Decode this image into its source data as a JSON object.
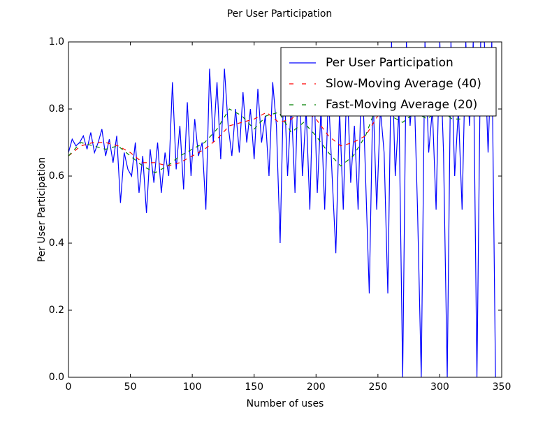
{
  "chart_data": {
    "type": "line",
    "title": "Per User Participation",
    "xlabel": "Number of uses",
    "ylabel": "Per User Participation",
    "xlim": [
      0,
      350
    ],
    "ylim": [
      0,
      1
    ],
    "xticks": [
      0,
      50,
      100,
      150,
      200,
      250,
      300,
      350
    ],
    "yticks": [
      {
        "value": 0,
        "label": "0.0"
      },
      0.2,
      0.4,
      0.6,
      0.8,
      {
        "value": 1,
        "label": "1.0"
      }
    ],
    "grid": false,
    "legend": "upper right",
    "series": [
      {
        "name": "Per User Participation",
        "color": "#0000ff",
        "style": "solid",
        "x": [
          0,
          3,
          6,
          9,
          12,
          15,
          18,
          21,
          24,
          27,
          30,
          33,
          36,
          39,
          42,
          45,
          48,
          51,
          54,
          57,
          60,
          63,
          66,
          69,
          72,
          75,
          78,
          81,
          84,
          87,
          90,
          93,
          96,
          99,
          102,
          105,
          108,
          111,
          114,
          117,
          120,
          123,
          126,
          129,
          132,
          135,
          138,
          141,
          144,
          147,
          150,
          153,
          156,
          159,
          162,
          165,
          168,
          171,
          174,
          177,
          180,
          183,
          186,
          189,
          192,
          195,
          198,
          201,
          204,
          207,
          210,
          213,
          216,
          219,
          222,
          225,
          228,
          231,
          234,
          237,
          240,
          243,
          246,
          249,
          252,
          255,
          258,
          261,
          264,
          267,
          270,
          273,
          276,
          279,
          282,
          285,
          288,
          291,
          294,
          297,
          300,
          303,
          306,
          309,
          312,
          315,
          318,
          321,
          324,
          327,
          330,
          333,
          336,
          339,
          342,
          345
        ],
        "values": [
          0.67,
          0.71,
          0.69,
          0.7,
          0.72,
          0.68,
          0.73,
          0.67,
          0.7,
          0.74,
          0.66,
          0.71,
          0.64,
          0.72,
          0.52,
          0.67,
          0.62,
          0.6,
          0.7,
          0.55,
          0.66,
          0.49,
          0.68,
          0.58,
          0.7,
          0.55,
          0.67,
          0.6,
          0.88,
          0.62,
          0.75,
          0.56,
          0.82,
          0.6,
          0.77,
          0.66,
          0.7,
          0.5,
          0.92,
          0.7,
          0.88,
          0.65,
          0.92,
          0.75,
          0.66,
          0.8,
          0.67,
          0.85,
          0.7,
          0.8,
          0.65,
          0.86,
          0.7,
          0.78,
          0.6,
          0.88,
          0.75,
          0.4,
          0.9,
          0.6,
          0.82,
          0.55,
          0.95,
          0.6,
          0.8,
          0.5,
          0.92,
          0.55,
          0.8,
          0.5,
          0.85,
          0.6,
          0.37,
          0.8,
          0.5,
          0.9,
          0.58,
          0.75,
          0.5,
          0.95,
          0.6,
          0.25,
          0.85,
          0.5,
          0.8,
          0.67,
          0.25,
          1.0,
          0.6,
          0.8,
          0.0,
          1.0,
          0.75,
          0.9,
          0.5,
          0.0,
          1.0,
          0.67,
          0.8,
          0.5,
          1.0,
          0.67,
          0.0,
          1.0,
          0.6,
          0.8,
          0.5,
          1.0,
          0.75,
          1.0,
          0.0,
          1.0,
          1.0,
          0.67,
          1.0,
          0.0
        ]
      },
      {
        "name": "Slow-Moving Average (40)",
        "color": "#ff0000",
        "style": "dashed",
        "x": [
          0,
          10,
          20,
          30,
          40,
          50,
          60,
          70,
          80,
          90,
          100,
          110,
          120,
          130,
          140,
          150,
          160,
          170,
          180,
          190,
          200,
          210,
          220,
          230,
          240,
          250,
          260,
          270,
          280,
          290,
          300,
          310
        ],
        "values": [
          0.66,
          0.69,
          0.7,
          0.7,
          0.69,
          0.67,
          0.64,
          0.64,
          0.63,
          0.64,
          0.66,
          0.68,
          0.71,
          0.75,
          0.76,
          0.77,
          0.79,
          0.76,
          0.77,
          0.8,
          0.77,
          0.72,
          0.69,
          0.7,
          0.72,
          0.78,
          0.8,
          0.78,
          0.82,
          0.8,
          0.79,
          0.78
        ]
      },
      {
        "name": "Fast-Moving Average (20)",
        "color": "#008000",
        "style": "dashed",
        "x": [
          0,
          10,
          20,
          30,
          40,
          50,
          60,
          70,
          80,
          90,
          100,
          110,
          120,
          130,
          140,
          150,
          160,
          170,
          180,
          190,
          200,
          210,
          220,
          230,
          240,
          250,
          260,
          270,
          280,
          290,
          300,
          310,
          320
        ],
        "values": [
          0.66,
          0.7,
          0.69,
          0.68,
          0.69,
          0.66,
          0.63,
          0.61,
          0.63,
          0.66,
          0.68,
          0.7,
          0.74,
          0.8,
          0.78,
          0.74,
          0.78,
          0.79,
          0.73,
          0.76,
          0.72,
          0.67,
          0.63,
          0.66,
          0.72,
          0.82,
          0.78,
          0.76,
          0.79,
          0.77,
          0.8,
          0.77,
          0.77
        ]
      }
    ]
  }
}
